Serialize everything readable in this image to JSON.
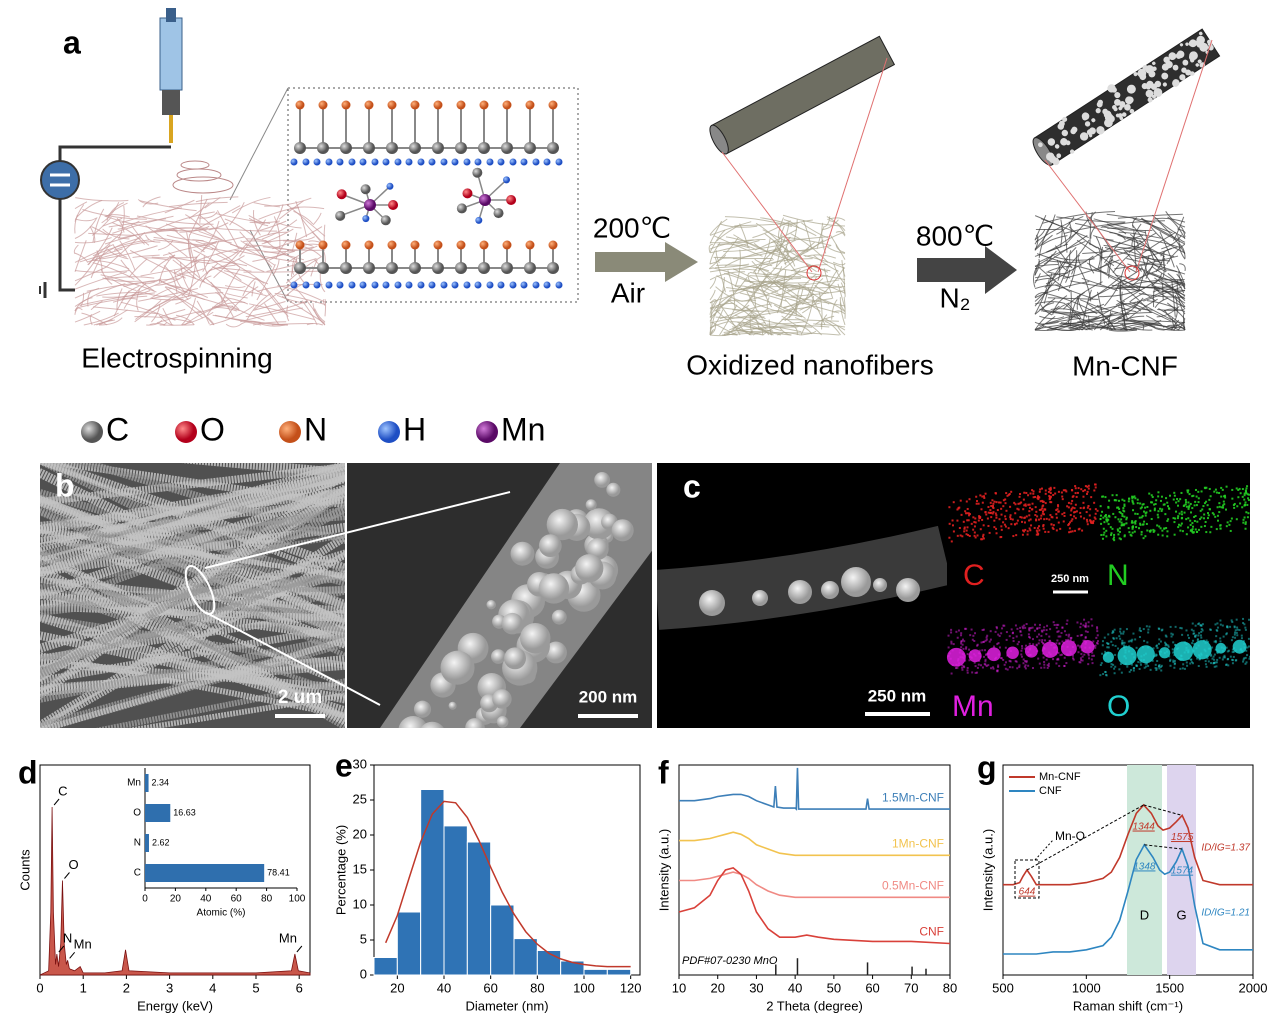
{
  "panel_a": {
    "label": "a",
    "steps": [
      "Electrospinning",
      "Oxidized nanofibers",
      "Mn-CNF"
    ],
    "arrow1": {
      "top": "200℃",
      "bottom": "Air"
    },
    "arrow2": {
      "top": "800℃",
      "bottom": "N₂"
    },
    "atoms": [
      "C",
      "O",
      "N",
      "H",
      "Mn"
    ]
  },
  "panel_b": {
    "label": "b",
    "scale_bars": [
      "2 um",
      "200 nm"
    ]
  },
  "panel_c": {
    "label": "c",
    "scale_bars": [
      "250 nm",
      "250 nm"
    ],
    "maps": [
      "C",
      "N",
      "Mn",
      "O"
    ]
  },
  "chart_data": [
    {
      "type": "area",
      "label": "d",
      "xlabel": "Energy (keV)",
      "ylabel": "Counts",
      "color": "#c0392b",
      "x": [
        0,
        0.2,
        0.25,
        0.28,
        0.31,
        0.36,
        0.39,
        0.43,
        0.48,
        0.52,
        0.56,
        0.61,
        0.64,
        0.68,
        0.8,
        0.93,
        1.0,
        1.5,
        1.9,
        1.98,
        2.06,
        3,
        4,
        5,
        5.82,
        5.9,
        5.98,
        6.25
      ],
      "values": [
        0,
        2,
        30,
        80,
        30,
        5,
        10,
        4,
        15,
        45,
        15,
        5,
        7,
        3,
        2,
        4,
        1,
        1,
        2,
        12,
        2,
        1,
        1,
        1,
        2,
        10,
        2,
        1
      ],
      "xlim": [
        0,
        6.25
      ],
      "xticks": [
        0,
        1,
        2,
        3,
        4,
        5,
        6
      ],
      "ylim": [
        0,
        100
      ],
      "annotations": [
        {
          "text": "C",
          "x": 0.28
        },
        {
          "text": "O",
          "x": 0.52
        },
        {
          "text": "N",
          "x": 0.39
        },
        {
          "text": "Mn",
          "x": 0.64
        },
        {
          "text": "Mn",
          "x": 5.9
        }
      ],
      "inset": {
        "type": "barh",
        "categories": [
          "Mn",
          "O",
          "N",
          "C"
        ],
        "values": [
          2.34,
          16.63,
          2.62,
          78.41
        ],
        "color": "#2f6fae",
        "xlim": [
          0,
          100
        ],
        "xticks": [
          0,
          20,
          40,
          60,
          80,
          100
        ],
        "xlabel": "Atomic (%)"
      }
    },
    {
      "type": "histogram",
      "label": "e",
      "xlabel": "Diameter (nm)",
      "ylabel": "Percentage (%)",
      "color": "#2f73b5",
      "bins": [
        10,
        20,
        30,
        40,
        50,
        60,
        70,
        80,
        90,
        100,
        110,
        120
      ],
      "values": [
        2.5,
        9,
        26.5,
        21.3,
        19,
        10,
        5.2,
        3.5,
        2,
        0.8,
        0.8
      ],
      "fit": {
        "color": "#c0392b",
        "x": [
          15,
          20,
          25,
          30,
          35,
          40,
          45,
          50,
          55,
          60,
          65,
          70,
          75,
          80,
          85,
          90,
          95,
          100,
          105,
          110,
          115,
          120
        ],
        "values": [
          4.6,
          8.5,
          13.8,
          19,
          23,
          24.8,
          24.6,
          22.5,
          19.2,
          15.4,
          11.8,
          8.7,
          6.2,
          4.4,
          3.1,
          2.3,
          1.8,
          1.5,
          1.3,
          1.2,
          1.2,
          1.2
        ]
      },
      "xlim": [
        10,
        124
      ],
      "xticks": [
        20,
        40,
        60,
        80,
        100,
        120
      ],
      "ylim": [
        0,
        30
      ],
      "yticks": [
        0,
        5,
        10,
        15,
        20,
        25,
        30
      ]
    },
    {
      "type": "line",
      "label": "f",
      "xlabel": "2 Theta (degree)",
      "ylabel": "Intensity (a.u.)",
      "xlim": [
        10,
        80
      ],
      "xticks": [
        10,
        20,
        30,
        40,
        50,
        60,
        70,
        80
      ],
      "ylim": [
        0,
        100
      ],
      "series": [
        {
          "name": "1.5Mn-CNF",
          "color": "#3d7fb8",
          "x": [
            10,
            14,
            18,
            20,
            22,
            24,
            26,
            28,
            30,
            33,
            34.5,
            34.9,
            35.3,
            37,
            40,
            40.3,
            40.6,
            40.9,
            42,
            50,
            58.3,
            58.7,
            59.1,
            65,
            70,
            80
          ],
          "values": [
            83,
            83,
            84,
            85,
            85.5,
            86,
            86,
            85,
            83,
            81,
            80,
            90,
            80,
            79.5,
            79.5,
            79,
            98.6,
            79,
            79,
            79,
            79,
            84,
            79,
            79,
            79,
            79
          ]
        },
        {
          "name": "1Mn-CNF",
          "color": "#f2c34f",
          "x": [
            10,
            14,
            18,
            20,
            22,
            24,
            26,
            28,
            30,
            33,
            36,
            40,
            50,
            60,
            70,
            80
          ],
          "values": [
            64,
            64,
            65,
            66,
            67,
            68,
            67,
            65,
            62,
            60,
            58,
            57,
            57,
            57,
            57,
            57
          ]
        },
        {
          "name": "0.5Mn-CNF",
          "color": "#f08a84",
          "x": [
            10,
            14,
            18,
            20,
            22,
            24,
            26,
            28,
            30,
            33,
            36,
            40,
            50,
            60,
            70,
            80
          ],
          "values": [
            45,
            45,
            46,
            47,
            48,
            49,
            48,
            46,
            43,
            40,
            38,
            37,
            37,
            37,
            37,
            37
          ]
        },
        {
          "name": "CNF",
          "color": "#d9413a",
          "x": [
            10,
            14,
            18,
            20,
            22,
            24,
            26,
            28,
            30,
            33,
            36,
            40,
            43,
            46,
            50,
            60,
            70,
            80
          ],
          "values": [
            30,
            32,
            38,
            45,
            50,
            51,
            48,
            40,
            30,
            22,
            18,
            18,
            19,
            18,
            17,
            16,
            16,
            15
          ]
        }
      ],
      "reference": {
        "name": "PDF#07-0230 MnO",
        "color": "#222222",
        "x": [
          35,
          40.6,
          58.7,
          70.2,
          73.8
        ],
        "values": [
          5,
          8,
          6,
          4,
          3
        ]
      }
    },
    {
      "type": "line",
      "label": "g",
      "xlabel": "Raman shift (cm⁻¹)",
      "ylabel": "Intensity (a.u.)",
      "xlim": [
        500,
        2000
      ],
      "xticks": [
        500,
        1000,
        1500,
        2000
      ],
      "ylim": [
        0,
        100
      ],
      "legend": "upper left",
      "bands": [
        {
          "name": "D",
          "range": [
            1244,
            1454
          ],
          "color": "#cde8da"
        },
        {
          "name": "G",
          "range": [
            1484,
            1658
          ],
          "color": "#ddd4ee"
        }
      ],
      "annotation": "Mn-O",
      "series": [
        {
          "name": "Mn-CNF",
          "color": "#c0392b",
          "x": [
            500,
            560,
            600,
            620,
            644,
            670,
            700,
            800,
            900,
            1000,
            1100,
            1150,
            1200,
            1250,
            1300,
            1344,
            1390,
            1430,
            1460,
            1500,
            1540,
            1575,
            1610,
            1650,
            1700,
            1800,
            1900,
            2000
          ],
          "values": [
            43,
            43,
            44,
            47,
            50,
            47,
            43,
            43,
            43,
            44,
            46,
            49,
            56,
            67,
            77,
            81,
            77,
            71,
            69,
            70,
            73,
            76,
            70,
            56,
            45,
            43,
            43,
            43
          ],
          "peaks": [
            644,
            1344,
            1575
          ],
          "ratio": "ID/IG=1.37"
        },
        {
          "name": "CNF",
          "color": "#2e86c1",
          "x": [
            500,
            600,
            700,
            800,
            900,
            1000,
            1100,
            1150,
            1200,
            1250,
            1300,
            1348,
            1400,
            1440,
            1470,
            1500,
            1540,
            1574,
            1610,
            1650,
            1700,
            1800,
            1900,
            2000
          ],
          "values": [
            10,
            10,
            10,
            11,
            11,
            12,
            14,
            18,
            26,
            40,
            55,
            62,
            56,
            50,
            48,
            49,
            54,
            60,
            52,
            33,
            15,
            12,
            12,
            12
          ],
          "peaks": [
            1348,
            1574
          ],
          "ratio": "ID/IG=1.21"
        }
      ]
    }
  ]
}
